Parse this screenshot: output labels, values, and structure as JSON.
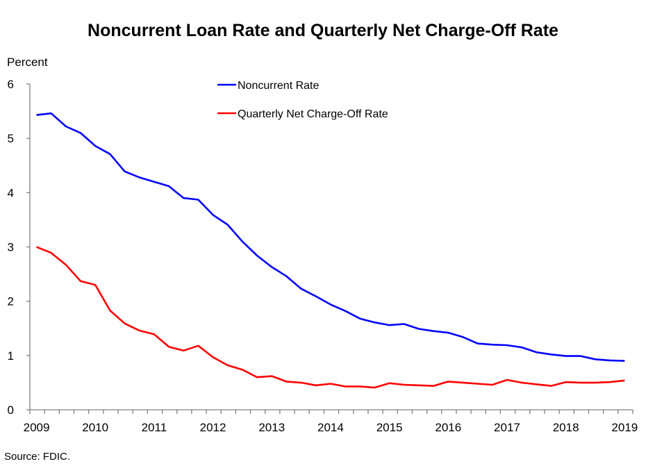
{
  "chart_data": {
    "type": "line",
    "title": "Noncurrent Loan Rate and Quarterly Net Charge-Off Rate",
    "ylabel": "Percent",
    "xlabel": "",
    "source": "Source:  FDIC.",
    "ylim": [
      0,
      6
    ],
    "yticks": [
      "0",
      "1",
      "2",
      "3",
      "4",
      "5",
      "6"
    ],
    "xtick_labels": [
      "2009",
      "2010",
      "2011",
      "2012",
      "2013",
      "2014",
      "2015",
      "2016",
      "2017",
      "2018",
      "2019"
    ],
    "x_start": "2009 Q1",
    "x_end": "2019 Q1",
    "grid": false,
    "legend_position": "top-center",
    "series": [
      {
        "name": "Noncurrent Rate",
        "color": "#0000ff",
        "values": [
          5.43,
          5.46,
          5.22,
          5.1,
          4.86,
          4.71,
          4.39,
          4.28,
          4.2,
          4.12,
          3.9,
          3.87,
          3.59,
          3.41,
          3.1,
          2.84,
          2.63,
          2.46,
          2.23,
          2.09,
          1.94,
          1.82,
          1.68,
          1.61,
          1.56,
          1.58,
          1.49,
          1.45,
          1.42,
          1.34,
          1.22,
          1.2,
          1.19,
          1.15,
          1.06,
          1.02,
          0.99,
          0.99,
          0.93,
          0.91,
          0.9
        ]
      },
      {
        "name": "Quarterly Net Charge-Off Rate",
        "color": "#ff0000",
        "values": [
          3.0,
          2.89,
          2.67,
          2.37,
          2.3,
          1.83,
          1.59,
          1.46,
          1.39,
          1.16,
          1.09,
          1.18,
          0.97,
          0.82,
          0.74,
          0.6,
          0.62,
          0.52,
          0.5,
          0.45,
          0.48,
          0.43,
          0.43,
          0.41,
          0.49,
          0.46,
          0.45,
          0.44,
          0.52,
          0.5,
          0.48,
          0.46,
          0.55,
          0.5,
          0.47,
          0.44,
          0.51,
          0.5,
          0.5,
          0.51,
          0.54
        ]
      }
    ]
  }
}
